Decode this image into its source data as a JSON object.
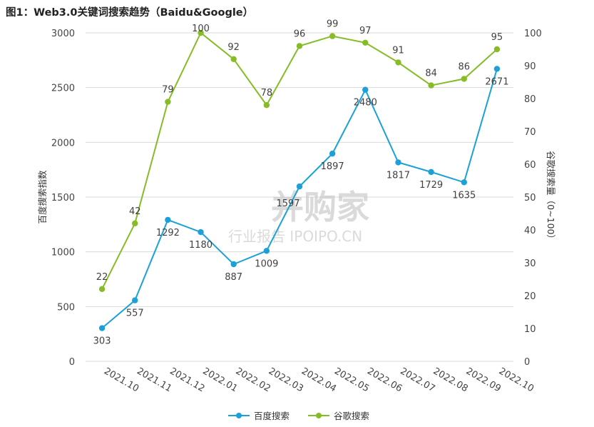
{
  "title": "图1：Web3.0关键词搜索趋势（Baidu&Google）",
  "watermark": {
    "brand": "并购家",
    "sub": "行业报告 IPOIPO.CN"
  },
  "colors": {
    "baidu": "#1ba1d8",
    "google": "#86bc25",
    "grid": "#d9d9d9"
  },
  "chart_data": {
    "type": "line",
    "categories": [
      "2021.10",
      "2021.11",
      "2021.12",
      "2022.01",
      "2022.02",
      "2022.03",
      "2022.04",
      "2022.05",
      "2022.06",
      "2022.07",
      "2022.08",
      "2022.09",
      "2022.10"
    ],
    "ylabel_left": "百度搜索指数",
    "ylabel_right": "谷歌搜索量（0~100）",
    "ylim_left": [
      0,
      3000
    ],
    "ylim_right": [
      0,
      100
    ],
    "yticks_left": [
      0,
      500,
      1000,
      1500,
      2000,
      2500,
      3000
    ],
    "yticks_right": [
      0,
      10,
      20,
      30,
      40,
      50,
      60,
      70,
      80,
      90,
      100
    ],
    "grid": true,
    "legend_position": "bottom",
    "series": [
      {
        "name": "百度搜索",
        "axis": "left",
        "color": "#1ba1d8",
        "values": [
          303,
          557,
          1292,
          1180,
          887,
          1009,
          1597,
          1897,
          2480,
          1817,
          1729,
          1635,
          2671
        ],
        "labels": [
          "303",
          "557",
          "1292",
          "1180",
          "887",
          "1009",
          "1597",
          "1897",
          "2480",
          "1817",
          "1729",
          "1635",
          "2671"
        ]
      },
      {
        "name": "谷歌搜索",
        "axis": "right",
        "color": "#86bc25",
        "values": [
          22,
          42,
          79,
          100,
          92,
          78,
          96,
          99,
          97,
          91,
          84,
          86,
          95
        ],
        "labels": [
          "22",
          "42",
          "79",
          "100",
          "92",
          "78",
          "96",
          "99",
          "97",
          "91",
          "84",
          "86",
          "95"
        ]
      }
    ]
  }
}
